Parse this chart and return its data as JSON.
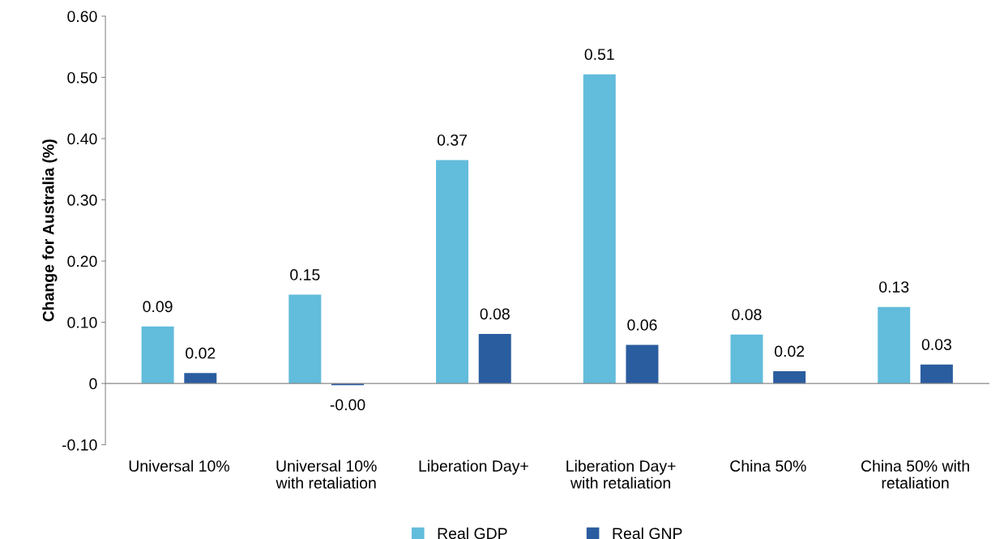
{
  "chart_data": {
    "type": "bar",
    "ylabel": "Change for Australia (%)",
    "categories": [
      "Universal 10%",
      "Universal 10%\nwith retaliation",
      "Liberation Day+",
      "Liberation Day+\nwith retaliation",
      "China 50%",
      "China 50% with\nretaliation"
    ],
    "series": [
      {
        "name": "Real GDP",
        "color": "#62bcdb",
        "values": [
          0.093,
          0.145,
          0.365,
          0.505,
          0.08,
          0.125
        ],
        "value_labels": [
          "0.09",
          "0.15",
          "0.37",
          "0.51",
          "0.08",
          "0.13"
        ]
      },
      {
        "name": "Real GNP",
        "color": "#2a5d9f",
        "values": [
          0.017,
          -0.003,
          0.081,
          0.063,
          0.02,
          0.031
        ],
        "value_labels": [
          "0.02",
          "-0.00",
          "0.08",
          "0.06",
          "0.02",
          "0.03"
        ]
      }
    ],
    "ylim": [
      -0.1,
      0.6
    ],
    "yticks": [
      {
        "value": -0.1,
        "label": "-0.10"
      },
      {
        "value": 0,
        "label": "0"
      },
      {
        "value": 0.1,
        "label": "0.10"
      },
      {
        "value": 0.2,
        "label": "0.20"
      },
      {
        "value": 0.3,
        "label": "0.30"
      },
      {
        "value": 0.4,
        "label": "0.40"
      },
      {
        "value": 0.5,
        "label": "0.50"
      },
      {
        "value": 0.6,
        "label": "0.60"
      }
    ],
    "legend": "bottom"
  }
}
